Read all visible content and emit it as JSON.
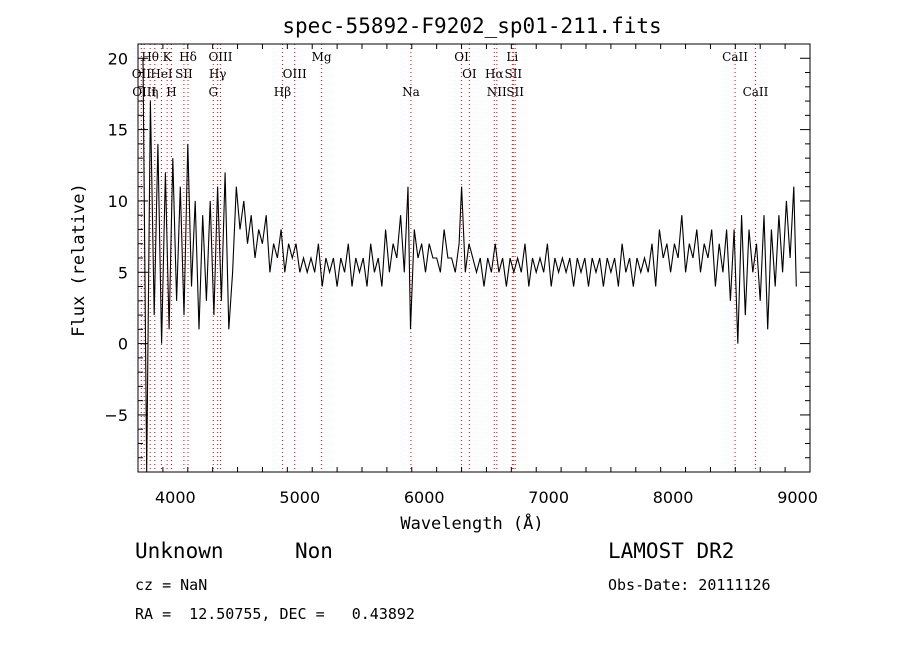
{
  "chart_data": {
    "type": "line",
    "title": "spec-55892-F9202_sp01-211.fits",
    "xlabel": "Wavelength (Å)",
    "ylabel": "Flux (relative)",
    "xlim": [
      3700,
      9100
    ],
    "ylim": [
      -9,
      21
    ],
    "xticks": [
      4000,
      5000,
      6000,
      7000,
      8000,
      9000
    ],
    "yticks": [
      -5,
      0,
      5,
      10,
      15,
      20
    ],
    "ytick_labels": [
      "−5",
      "0",
      "5",
      "10",
      "15",
      "20"
    ],
    "grid": false,
    "series": [
      {
        "x": [
          3740,
          3770,
          3800,
          3830,
          3860,
          3890,
          3920,
          3950,
          3980,
          4010,
          4040,
          4070,
          4100,
          4130,
          4160,
          4190,
          4220,
          4250,
          4280,
          4310,
          4340,
          4370,
          4400,
          4430,
          4460,
          4490,
          4520,
          4550,
          4580,
          4610,
          4640,
          4670,
          4700,
          4730,
          4760,
          4790,
          4820,
          4850,
          4880,
          4910,
          4940,
          4970,
          5000,
          5030,
          5060,
          5090,
          5120,
          5150,
          5180,
          5210,
          5240,
          5270,
          5300,
          5330,
          5360,
          5390,
          5420,
          5450,
          5480,
          5510,
          5540,
          5570,
          5600,
          5630,
          5660,
          5690,
          5720,
          5750,
          5780,
          5810,
          5840,
          5870,
          5890,
          5920,
          5950,
          5980,
          6010,
          6040,
          6070,
          6100,
          6130,
          6160,
          6190,
          6220,
          6250,
          6280,
          6300,
          6330,
          6360,
          6390,
          6420,
          6450,
          6480,
          6510,
          6540,
          6570,
          6600,
          6630,
          6660,
          6690,
          6720,
          6750,
          6780,
          6810,
          6840,
          6870,
          6900,
          6930,
          6960,
          6990,
          7020,
          7050,
          7080,
          7110,
          7140,
          7170,
          7200,
          7230,
          7260,
          7290,
          7320,
          7350,
          7380,
          7410,
          7440,
          7470,
          7500,
          7530,
          7560,
          7590,
          7620,
          7650,
          7680,
          7710,
          7740,
          7770,
          7800,
          7830,
          7860,
          7890,
          7920,
          7950,
          7980,
          8010,
          8040,
          8070,
          8100,
          8130,
          8160,
          8190,
          8220,
          8250,
          8280,
          8310,
          8340,
          8370,
          8400,
          8430,
          8460,
          8490,
          8520,
          8550,
          8580,
          8610,
          8640,
          8670,
          8700,
          8730,
          8760,
          8790,
          8820,
          8850,
          8880,
          8910,
          8940,
          8970,
          8990
        ],
        "y": [
          20,
          -9,
          17,
          2,
          14,
          0,
          12,
          1,
          13,
          3,
          11,
          2,
          14,
          4,
          10,
          1,
          9,
          3,
          10,
          2,
          11,
          3,
          12,
          1,
          5,
          11,
          8,
          10,
          7,
          9,
          6,
          8,
          7,
          9,
          5,
          7,
          6,
          8,
          5,
          7,
          6,
          7,
          5,
          6,
          5,
          6,
          5,
          7,
          4,
          6,
          5,
          6,
          4,
          6,
          5,
          7,
          4,
          6,
          5,
          6,
          4,
          7,
          5,
          6,
          4,
          8,
          5,
          7,
          6,
          9,
          5,
          11,
          1,
          8,
          6,
          7,
          5,
          7,
          6,
          6,
          5,
          8,
          6,
          6,
          5,
          7,
          11,
          5,
          7,
          6,
          5,
          6,
          4,
          6,
          5,
          7,
          5,
          6,
          4,
          6,
          5,
          6,
          5,
          7,
          4,
          6,
          5,
          6,
          5,
          7,
          4,
          6,
          5,
          6,
          5,
          6,
          4,
          6,
          5,
          6,
          4,
          6,
          5,
          6,
          4,
          6,
          5,
          6,
          4,
          7,
          5,
          6,
          4,
          6,
          5,
          6,
          5,
          7,
          4,
          8,
          6,
          7,
          5,
          7,
          6,
          9,
          5,
          7,
          6,
          8,
          5,
          7,
          6,
          8,
          4,
          7,
          5,
          8,
          3,
          8,
          0,
          9,
          2,
          8,
          5,
          7,
          3,
          9,
          1,
          8,
          4,
          9,
          5,
          10,
          6,
          11,
          4
        ]
      }
    ],
    "line_markers": [
      {
        "label": "Hθ",
        "x": 3798,
        "row": 0
      },
      {
        "label": "K",
        "x": 3934,
        "row": 0
      },
      {
        "label": "Hδ",
        "x": 4102,
        "row": 0
      },
      {
        "label": "OIII",
        "x": 4363,
        "row": 0
      },
      {
        "label": "Mg",
        "x": 5175,
        "row": 0
      },
      {
        "label": "OI",
        "x": 6300,
        "row": 0
      },
      {
        "label": "Li",
        "x": 6708,
        "row": 0
      },
      {
        "label": "CaII",
        "x": 8498,
        "row": 0
      },
      {
        "label": "OII",
        "x": 3727,
        "row": 1
      },
      {
        "label": "HeI",
        "x": 3889,
        "row": 1
      },
      {
        "label": "SII",
        "x": 4069,
        "row": 1
      },
      {
        "label": "Hγ",
        "x": 4340,
        "row": 1
      },
      {
        "label": "OIII",
        "x": 4959,
        "row": 1
      },
      {
        "label": "OI",
        "x": 6363,
        "row": 1
      },
      {
        "label": "Hα",
        "x": 6563,
        "row": 1
      },
      {
        "label": "SII",
        "x": 6716,
        "row": 1
      },
      {
        "label": "OIII",
        "x": 3750,
        "row": 2
      },
      {
        "label": "η",
        "x": 3835,
        "row": 2
      },
      {
        "label": "H",
        "x": 3969,
        "row": 2
      },
      {
        "label": "G",
        "x": 4305,
        "row": 2
      },
      {
        "label": "Hβ",
        "x": 4861,
        "row": 2
      },
      {
        "label": "Na",
        "x": 5893,
        "row": 2
      },
      {
        "label": "NII",
        "x": 6583,
        "row": 2
      },
      {
        "label": "SII",
        "x": 6731,
        "row": 2
      },
      {
        "label": "CaII",
        "x": 8662,
        "row": 2
      }
    ],
    "marker_color": "#ff0000"
  },
  "info": {
    "class": "Unknown",
    "subclass": "Non",
    "survey": "LAMOST DR2",
    "cz": "cz = NaN",
    "obs_date": "Obs-Date: 20111126",
    "radec": "RA =  12.50755, DEC =   0.43892"
  }
}
